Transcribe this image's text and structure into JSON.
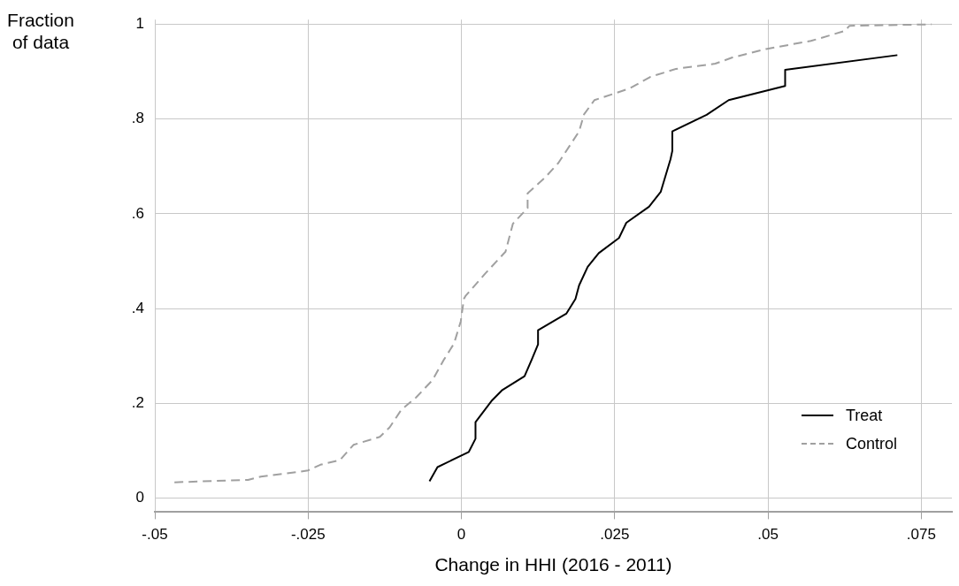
{
  "chart_data": {
    "type": "line",
    "xlabel": "Change in HHI (2016 - 2011)",
    "ylabel": "Fraction of data",
    "xlim": [
      -0.05,
      0.08
    ],
    "ylim": [
      -0.03,
      1.01
    ],
    "xticks": [
      {
        "value": -0.05,
        "label": "-.05"
      },
      {
        "value": -0.025,
        "label": "-.025"
      },
      0,
      {
        "value": 0.025,
        "label": ".025"
      },
      {
        "value": 0.05,
        "label": ".05"
      },
      {
        "value": 0.075,
        "label": ".075"
      }
    ],
    "yticks": [
      0,
      {
        "value": 0.2,
        "label": ".2"
      },
      {
        "value": 0.4,
        "label": ".4"
      },
      {
        "value": 0.6,
        "label": ".6"
      },
      {
        "value": 0.8,
        "label": ".8"
      },
      1
    ],
    "grid": true,
    "legend": "bottom right",
    "marker": "none",
    "series": [
      {
        "name": "Treat",
        "color": "#000000",
        "line_style": "solid",
        "x": [
          -0.0052,
          -0.0039,
          0.0012,
          0.0023,
          0.0023,
          0.005,
          0.0066,
          0.0103,
          0.0115,
          0.0125,
          0.0125,
          0.0171,
          0.0186,
          0.0192,
          0.0206,
          0.0224,
          0.0257,
          0.0269,
          0.0306,
          0.0325,
          0.0341,
          0.0344,
          0.0344,
          0.04,
          0.0436,
          0.0528,
          0.0528,
          0.0711
        ],
        "values": [
          0.035,
          0.065,
          0.097,
          0.125,
          0.16,
          0.206,
          0.227,
          0.257,
          0.293,
          0.324,
          0.354,
          0.389,
          0.42,
          0.449,
          0.488,
          0.517,
          0.549,
          0.581,
          0.615,
          0.646,
          0.715,
          0.733,
          0.774,
          0.809,
          0.84,
          0.87,
          0.904,
          0.935
        ]
      },
      {
        "name": "Control",
        "color": "#a0a0a0",
        "line_style": "dashed",
        "x": [
          -0.0468,
          -0.0348,
          -0.0327,
          -0.0265,
          -0.025,
          -0.023,
          -0.0198,
          -0.0176,
          -0.0133,
          -0.0117,
          -0.0098,
          -0.0074,
          -0.0047,
          -0.0028,
          -0.0012,
          -0.0001,
          0.0004,
          0.0007,
          0.0039,
          0.0072,
          0.0084,
          0.0108,
          0.0108,
          0.0136,
          0.0158,
          0.0192,
          0.02,
          0.0217,
          0.0275,
          0.0308,
          0.035,
          0.0414,
          0.0442,
          0.0497,
          0.057,
          0.0625,
          0.0633,
          0.0767
        ],
        "values": [
          0.033,
          0.038,
          0.045,
          0.055,
          0.058,
          0.07,
          0.08,
          0.112,
          0.129,
          0.149,
          0.186,
          0.212,
          0.249,
          0.293,
          0.326,
          0.373,
          0.42,
          0.427,
          0.474,
          0.52,
          0.579,
          0.612,
          0.643,
          0.676,
          0.707,
          0.774,
          0.81,
          0.84,
          0.865,
          0.889,
          0.906,
          0.917,
          0.93,
          0.948,
          0.965,
          0.986,
          0.997,
          1.0
        ]
      }
    ]
  }
}
